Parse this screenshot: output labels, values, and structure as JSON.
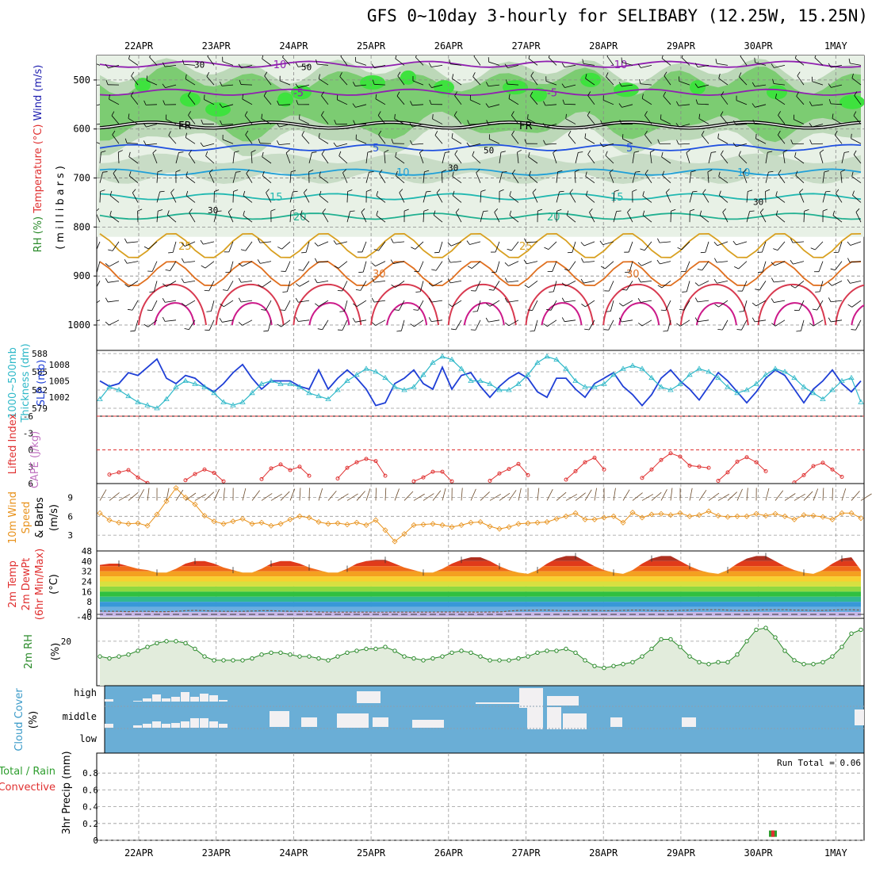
{
  "title": "GFS 0~10day 3-hourly for SELIBABY (12.25W, 15.25N)",
  "colors": {
    "wind_barb": "#000000",
    "slp": "#1f3fd6",
    "thickness": "#2eb8c8",
    "lifted_index": "#e03030",
    "wind_speed": "#e8921c",
    "rh_line": "#2a8a2a",
    "cloud_bg": "#6aaed6",
    "cloud_gap": "#f2f0f2",
    "precip_rain": "#2e9e2e",
    "precip_conv": "#e03030",
    "fr_line": "#000000"
  },
  "chart_data": [
    {
      "id": "cross_section",
      "type": "heatmap",
      "ylabel_parts": [
        {
          "text": "RH (%)",
          "color": "#2a8a2a"
        },
        {
          "text": "Temperature (°C)",
          "color": "#e03030"
        },
        {
          "text": "Wind (m/s)",
          "color": "#2020b0"
        }
      ],
      "y2label": "(millibars)",
      "yticks": [
        500,
        600,
        700,
        800,
        900,
        1000
      ],
      "ylim": [
        1000,
        450
      ],
      "x_labels": [
        "22APR",
        "23APR",
        "24APR",
        "25APR",
        "26APR",
        "27APR",
        "28APR",
        "29APR",
        "30APR",
        "1MAY"
      ],
      "isotherms": [
        {
          "label": "-10",
          "color": "#9020b0",
          "p": 468
        },
        {
          "label": "-5",
          "color": "#9020b0",
          "p": 525
        },
        {
          "label": "FR",
          "color": "#000000",
          "p": 592
        },
        {
          "label": "5",
          "color": "#2050e0",
          "p": 638
        },
        {
          "label": "10",
          "color": "#20a0d8",
          "p": 688
        },
        {
          "label": "15",
          "color": "#20b8b0",
          "p": 738
        },
        {
          "label": "20",
          "color": "#20b090",
          "p": 778
        },
        {
          "label": "25",
          "color": "#d8a020",
          "p": 838
        },
        {
          "label": "30",
          "color": "#e07020",
          "p": 895
        }
      ],
      "rh_contour_labels": [
        "30",
        "50",
        "70"
      ]
    },
    {
      "id": "slp_thickness",
      "type": "line",
      "ylabel": "Thickness 1000~500mb (dm)",
      "y2label": "SLP (mb)",
      "yticks_left": [
        579,
        582,
        585,
        588
      ],
      "yticks_right": [
        1002,
        1005,
        1008
      ],
      "series": [
        {
          "name": "SLP (mb)",
          "color": "#1f3fd6",
          "values": [
            1005.0,
            1004.0,
            1004.5,
            1006.5,
            1006.0,
            1007.5,
            1009.0,
            1005.5,
            1004.5,
            1006.0,
            1005.5,
            1004.0,
            1003.0,
            1004.5,
            1006.5,
            1008.0,
            1005.5,
            1003.5,
            1005.0,
            1005.0,
            1005.0,
            1004.0,
            1003.5,
            1007.0,
            1003.5,
            1005.5,
            1007.0,
            1005.5,
            1003.5,
            1000.5,
            1001.0,
            1004.5,
            1005.5,
            1007.0,
            1004.5,
            1003.5,
            1007.5,
            1003.5,
            1006.0,
            1006.5,
            1004.0,
            1002.0,
            1004.0,
            1005.5,
            1006.5,
            1005.5,
            1003.0,
            1002.0,
            1005.5,
            1005.5,
            1003.5,
            1002.0,
            1004.5,
            1005.5,
            1006.5,
            1004.0,
            1002.5,
            1000.5,
            1002.5,
            1005.5,
            1007.0,
            1005.0,
            1003.5,
            1001.5,
            1004.0,
            1006.5,
            1005.0,
            1003.0,
            1001.0,
            1003.0,
            1005.5,
            1007.0,
            1006.0,
            1003.5,
            1001.0,
            1003.5,
            1005.0,
            1007.0,
            1004.5,
            1003.0,
            1005.0
          ]
        },
        {
          "name": "Thickness (dm)",
          "color": "#2eb8c8",
          "values": [
            580.5,
            582.5,
            582.0,
            581.0,
            580.0,
            579.5,
            579.0,
            580.5,
            582.5,
            583.5,
            583.0,
            582.5,
            581.5,
            580.0,
            579.5,
            580.0,
            581.5,
            583.0,
            583.5,
            583.0,
            583.0,
            582.5,
            581.5,
            581.0,
            580.5,
            582.0,
            583.5,
            584.5,
            585.5,
            585.0,
            584.0,
            582.5,
            582.0,
            582.5,
            584.5,
            586.5,
            587.5,
            587.0,
            585.5,
            583.5,
            583.5,
            583.0,
            582.0,
            582.0,
            583.0,
            584.5,
            586.5,
            587.5,
            587.0,
            585.5,
            583.5,
            582.5,
            582.5,
            583.0,
            584.5,
            585.5,
            586.0,
            585.5,
            584.0,
            582.5,
            582.0,
            583.0,
            584.5,
            585.5,
            585.0,
            584.0,
            582.5,
            581.5,
            582.0,
            583.0,
            584.5,
            585.5,
            585.0,
            584.0,
            582.5,
            581.5,
            580.5,
            582.0,
            583.5,
            584.0,
            580.0
          ]
        }
      ]
    },
    {
      "id": "stability",
      "type": "line",
      "ylabel": "Lifted Index",
      "y2label": "CAPE (J/kg)",
      "yticks": [
        -6,
        -3,
        0,
        3,
        6
      ],
      "series": [
        {
          "name": "Lifted Index",
          "color": "#e03030",
          "segments": [
            [
              [
                1,
                4.4
              ],
              [
                2,
                4.0
              ],
              [
                3,
                3.6
              ],
              [
                4,
                4.9
              ],
              [
                5,
                5.9
              ]
            ],
            [
              [
                9,
                5.4
              ],
              [
                10,
                4.3
              ],
              [
                11,
                3.5
              ],
              [
                12,
                4.1
              ],
              [
                13,
                5.6
              ]
            ],
            [
              [
                17,
                5.2
              ],
              [
                18,
                3.3
              ],
              [
                19,
                2.6
              ],
              [
                20,
                3.6
              ],
              [
                21,
                3.0
              ],
              [
                22,
                4.6
              ]
            ],
            [
              [
                25,
                5.1
              ],
              [
                26,
                3.2
              ],
              [
                27,
                2.2
              ],
              [
                28,
                1.6
              ],
              [
                29,
                2.0
              ],
              [
                30,
                4.6
              ]
            ],
            [
              [
                33,
                5.6
              ],
              [
                34,
                4.9
              ],
              [
                35,
                3.9
              ],
              [
                36,
                3.9
              ],
              [
                37,
                5.6
              ]
            ],
            [
              [
                41,
                5.5
              ],
              [
                42,
                4.2
              ],
              [
                43,
                3.4
              ],
              [
                44,
                2.5
              ],
              [
                45,
                4.5
              ]
            ],
            [
              [
                49,
                5.3
              ],
              [
                50,
                3.8
              ],
              [
                51,
                2.2
              ],
              [
                52,
                1.4
              ],
              [
                53,
                3.5
              ]
            ],
            [
              [
                57,
                5.0
              ],
              [
                58,
                3.5
              ],
              [
                59,
                1.8
              ],
              [
                60,
                0.6
              ],
              [
                61,
                1.2
              ],
              [
                62,
                2.8
              ],
              [
                63,
                3.0
              ],
              [
                64,
                3.2
              ]
            ],
            [
              [
                65,
                5.5
              ],
              [
                66,
                4.0
              ],
              [
                67,
                2.1
              ],
              [
                68,
                1.3
              ],
              [
                69,
                2.2
              ],
              [
                70,
                3.8
              ]
            ],
            [
              [
                73,
                5.8
              ],
              [
                74,
                4.5
              ],
              [
                75,
                2.9
              ],
              [
                76,
                2.3
              ],
              [
                77,
                3.5
              ],
              [
                78,
                4.8
              ]
            ]
          ]
        }
      ]
    },
    {
      "id": "wind10m",
      "type": "line",
      "ylabel": "10m Wind Speed & Barbs (m/s)",
      "yticks": [
        3,
        6,
        9
      ],
      "series": [
        {
          "name": "10m Wind Speed",
          "color": "#e8921c",
          "values": [
            6.5,
            5.4,
            5.0,
            4.8,
            4.9,
            4.5,
            6.3,
            8.4,
            10.5,
            9.0,
            7.9,
            6.1,
            5.2,
            4.8,
            5.2,
            5.6,
            4.8,
            5.0,
            4.5,
            4.8,
            5.5,
            6.0,
            5.8,
            5.1,
            4.8,
            4.9,
            4.7,
            5.0,
            4.6,
            5.4,
            3.8,
            2.0,
            3.2,
            4.6,
            4.7,
            4.8,
            4.6,
            4.3,
            4.6,
            5.0,
            5.1,
            4.4,
            4.0,
            4.3,
            4.8,
            4.9,
            5.0,
            5.1,
            5.6,
            6.0,
            6.5,
            5.5,
            5.5,
            5.8,
            6.0,
            5.0,
            6.6,
            5.8,
            6.3,
            6.4,
            6.2,
            6.5,
            6.0,
            6.2,
            6.8,
            6.1,
            5.9,
            6.0,
            6.0,
            6.4,
            6.1,
            6.4,
            6.0,
            5.5,
            6.2,
            6.1,
            5.9,
            5.5,
            6.5,
            6.5,
            5.7
          ]
        }
      ]
    },
    {
      "id": "temperature2m",
      "type": "area",
      "ylabel": "2m Temp 2m DewPt (6hr Min/Max)",
      "yunit": "(°C)",
      "yticks": [
        -40,
        0,
        8,
        16,
        24,
        32,
        40,
        48
      ],
      "series": [
        {
          "name": "2m Temp",
          "color": "#6b2a1a",
          "values": [
            37,
            38,
            38,
            36,
            34,
            33,
            31,
            31,
            34,
            38,
            40,
            40,
            38,
            35,
            33,
            31,
            31,
            34,
            38,
            40,
            40,
            38,
            35,
            33,
            31,
            31,
            34,
            38,
            40,
            41,
            41,
            38,
            35,
            33,
            31,
            31,
            34,
            38,
            41,
            43,
            43,
            40,
            36,
            33,
            31,
            30,
            33,
            38,
            42,
            44,
            44,
            40,
            36,
            33,
            31,
            30,
            33,
            38,
            42,
            44,
            44,
            40,
            36,
            33,
            31,
            30,
            33,
            38,
            42,
            44,
            44,
            40,
            36,
            33,
            31,
            30,
            33,
            38,
            42,
            43,
            33
          ]
        },
        {
          "name": "2m DewPt",
          "color": "#5a4a6a",
          "values": [
            -5,
            -6,
            -6,
            -7,
            -6,
            -6,
            -7,
            -7,
            -6,
            -4,
            -3,
            -4,
            -5,
            -6,
            -6,
            -6,
            -5,
            -4,
            -4,
            -5,
            -6,
            -6,
            -6,
            -8,
            -11,
            -12,
            -12,
            -11,
            -12,
            -13,
            -13,
            -12,
            -12,
            -11,
            -10,
            -10,
            -9,
            -8,
            -9,
            -10,
            -10,
            -9,
            -8,
            -5,
            -3,
            -3,
            -2,
            -2,
            -3,
            -4,
            -4,
            -3,
            -3,
            -4,
            -4,
            -3,
            -2,
            -2,
            -3,
            -4,
            -4,
            -3,
            -2,
            -1,
            -1,
            -1,
            -2,
            -3,
            -3,
            -2,
            -1,
            -1,
            -1,
            -2,
            -2,
            -3,
            -3,
            -2,
            -1,
            -1,
            -2
          ]
        }
      ]
    },
    {
      "id": "rh2m",
      "type": "area",
      "ylabel": "2m RH",
      "yunit": "(%)",
      "yticks": [
        20
      ],
      "series": [
        {
          "name": "2m RH",
          "color": "#2a8a2a",
          "values": [
            12,
            11,
            12,
            13,
            15,
            17,
            19,
            20,
            20,
            19,
            16,
            12,
            10,
            10,
            10,
            10,
            11,
            13,
            14,
            14,
            13,
            12,
            12,
            11,
            10,
            12,
            14,
            15,
            16,
            16,
            17,
            15,
            12,
            11,
            10,
            11,
            12,
            14,
            15,
            14,
            12,
            10,
            10,
            10,
            11,
            12,
            14,
            15,
            15,
            16,
            14,
            10,
            7,
            6,
            7,
            8,
            9,
            12,
            16,
            21,
            21,
            17,
            12,
            9,
            8,
            9,
            9,
            13,
            20,
            26,
            27,
            22,
            15,
            10,
            8,
            8,
            9,
            12,
            17,
            24,
            26
          ]
        }
      ]
    },
    {
      "id": "cloud",
      "type": "bar",
      "ylabel": "Cloud Cover (%)",
      "levels": [
        "high",
        "middle",
        "low"
      ],
      "high": [
        3,
        0,
        0,
        1,
        4,
        9,
        4,
        6,
        12,
        6,
        10,
        8,
        2,
        0,
        0,
        0,
        0,
        0,
        0,
        0,
        0,
        0,
        0,
        0,
        0,
        0,
        0,
        0,
        0,
        0,
        0,
        0,
        0,
        0,
        0,
        0,
        0,
        0,
        0,
        0,
        0,
        0,
        0,
        0,
        0,
        0,
        0,
        0,
        0,
        0,
        0,
        0,
        0,
        0,
        0,
        0,
        0,
        0,
        0,
        0,
        0,
        0,
        0,
        0,
        0,
        0,
        0,
        0,
        0,
        0,
        0,
        0,
        0,
        0,
        0,
        0,
        0,
        0,
        0,
        0,
        0
      ],
      "middle": [
        5,
        0,
        0,
        3,
        5,
        8,
        5,
        6,
        8,
        12,
        12,
        8,
        5,
        0,
        0,
        0,
        0,
        0,
        0,
        0,
        0,
        0,
        0,
        0,
        0,
        0,
        0,
        0,
        0,
        0,
        0,
        0,
        0,
        0,
        0,
        0,
        0,
        0,
        0,
        0,
        0,
        0,
        0,
        0,
        0,
        0,
        0,
        0,
        0,
        0,
        0,
        0,
        0,
        0,
        0,
        0,
        0,
        0,
        0,
        0,
        0,
        0,
        0,
        0,
        0,
        0,
        0,
        0,
        0,
        0,
        0,
        0,
        0,
        0,
        0,
        0,
        0,
        0,
        0,
        0,
        0
      ]
    },
    {
      "id": "precip",
      "type": "bar",
      "ylabel": "3hr Precip (mm)",
      "ylabel_parts": [
        {
          "text": "Total / Rain",
          "color": "#2e9e2e"
        },
        {
          "text": "Convective",
          "color": "#e03030"
        }
      ],
      "yticks": [
        0,
        0.2,
        0.4,
        0.6,
        0.8
      ],
      "ylim": [
        0,
        1.0
      ],
      "run_total": "Run Total = 0.06",
      "bars": [
        {
          "x": 70,
          "total": 0.06,
          "convective": 0.06
        }
      ]
    }
  ]
}
